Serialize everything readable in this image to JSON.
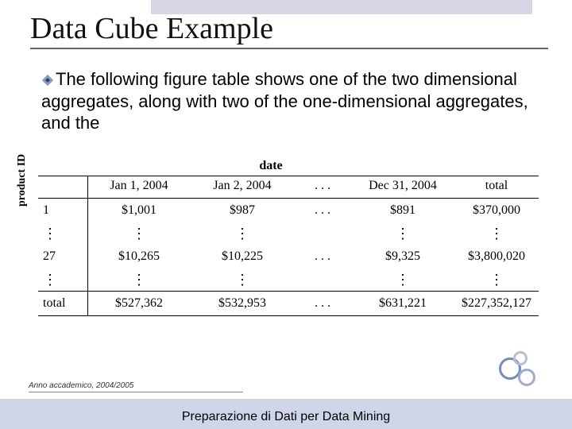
{
  "title": "Data Cube Example",
  "body": "The following figure table shows one of the two dimensional aggregates, along with two of the one-dimensional aggregates, and the",
  "table": {
    "super_header": "date",
    "row_axis_label": "product ID",
    "col_headers": [
      "Jan 1, 2004",
      "Jan 2, 2004",
      ". . .",
      "Dec 31, 2004",
      "total"
    ],
    "rows": [
      {
        "label": "1",
        "cells": [
          "$1,001",
          "$987",
          ". . .",
          "$891",
          "$370,000"
        ]
      },
      {
        "label": "⋮",
        "cells": [
          "⋮",
          "⋮",
          "",
          "⋮",
          "⋮"
        ],
        "vdots": true
      },
      {
        "label": "27",
        "cells": [
          "$10,265",
          "$10,225",
          ". . .",
          "$9,325",
          "$3,800,020"
        ]
      },
      {
        "label": "⋮",
        "cells": [
          "⋮",
          "⋮",
          "",
          "⋮",
          "⋮"
        ],
        "vdots": true
      },
      {
        "label": "total",
        "cells": [
          "$527,362",
          "$532,953",
          ". . .",
          "$631,221",
          "$227,352,127"
        ]
      }
    ]
  },
  "footer_note": "Anno accademico, 2004/2005",
  "footer_text": "Preparazione di Dati per Data Mining"
}
